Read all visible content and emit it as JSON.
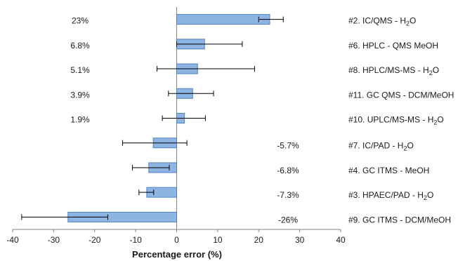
{
  "chart_data": {
    "type": "bar",
    "orientation": "horizontal",
    "xlabel": "Percentage error  (%)",
    "xlim": [
      -40,
      40
    ],
    "xticks": [
      -40,
      -30,
      -20,
      -10,
      0,
      10,
      20,
      30,
      40
    ],
    "bar_color": "#8EB4E3",
    "bar_edge_color": "#4F81BD",
    "grid": false,
    "categories": [
      {
        "name": "#2. IC/QMS - H",
        "sub": "2",
        "suffix": "O"
      },
      {
        "name": "#6. HPLC - QMS MeOH",
        "sub": "",
        "suffix": ""
      },
      {
        "name": "#8. HPLC/MS-MS - H",
        "sub": "2",
        "suffix": "O"
      },
      {
        "name": "#11. GC QMS - DCM/MeOH",
        "sub": "",
        "suffix": ""
      },
      {
        "name": "#10. UPLC/MS-MS - H",
        "sub": "2",
        "suffix": "O"
      },
      {
        "name": "#7. IC/PAD - H",
        "sub": "2",
        "suffix": "O"
      },
      {
        "name": "#4. GC ITMS - MeOH",
        "sub": "",
        "suffix": ""
      },
      {
        "name": "#3. HPAEC/PAD - H",
        "sub": "2",
        "suffix": "O"
      },
      {
        "name": "#9. GC ITMS - DCM/MeOH",
        "sub": "",
        "suffix": ""
      }
    ],
    "values": [
      22.7,
      6.8,
      5.1,
      3.9,
      1.9,
      -5.7,
      -6.8,
      -7.3,
      -26.5
    ],
    "error_low": [
      20.0,
      0.0,
      -4.8,
      -2.0,
      -3.5,
      -13.2,
      -10.8,
      -9.2,
      -37.8
    ],
    "error_high": [
      26.0,
      16.0,
      19.0,
      9.0,
      7.0,
      2.5,
      -1.8,
      -5.6,
      -16.8
    ],
    "value_labels": [
      "23%",
      "6.8%",
      "5.1%",
      "3.9%",
      "1.9%",
      "-5.7%",
      "-6.8%",
      "-7.3%",
      "-26%"
    ]
  }
}
